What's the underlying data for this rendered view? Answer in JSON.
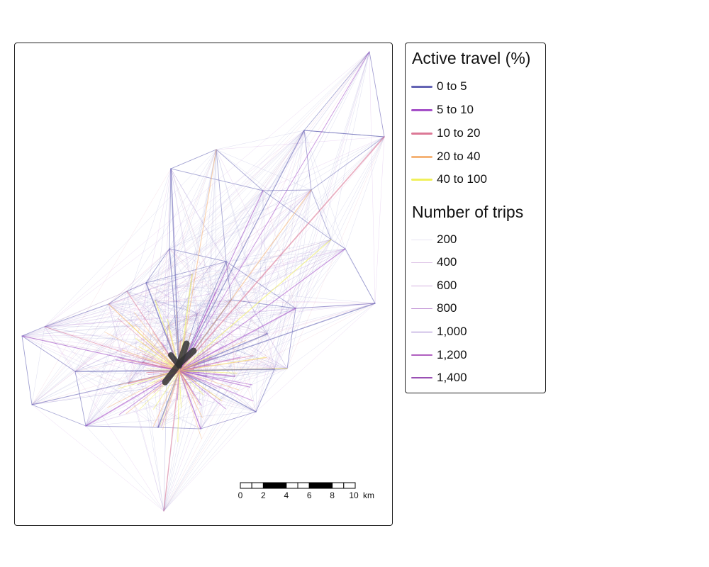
{
  "legend": {
    "active_title": "Active travel (%)",
    "active_items": [
      {
        "label": "0 to 5",
        "color": "#6464b4"
      },
      {
        "label": "5 to 10",
        "color": "#a550c8"
      },
      {
        "label": "10 to 20",
        "color": "#dc7896"
      },
      {
        "label": "20 to 40",
        "color": "#f5b478"
      },
      {
        "label": "40 to 100",
        "color": "#f0f05a"
      }
    ],
    "trips_title": "Number of trips",
    "trips_items": [
      {
        "label": "200",
        "color": "#e8e4f4"
      },
      {
        "label": "400",
        "color": "#e0c8e8"
      },
      {
        "label": "600",
        "color": "#d4b0e0"
      },
      {
        "label": "800",
        "color": "#c090d4"
      },
      {
        "label": "1,000",
        "color": "#9a78cc"
      },
      {
        "label": "1,200",
        "color": "#b060c0"
      },
      {
        "label": "1,400",
        "color": "#9a50b4"
      }
    ]
  },
  "scalebar": {
    "ticks": [
      "0",
      "2",
      "4",
      "6",
      "8",
      "10"
    ],
    "unit": "km"
  },
  "colors": {
    "centroid_line": "#333333",
    "panel_border": "#222222"
  }
}
